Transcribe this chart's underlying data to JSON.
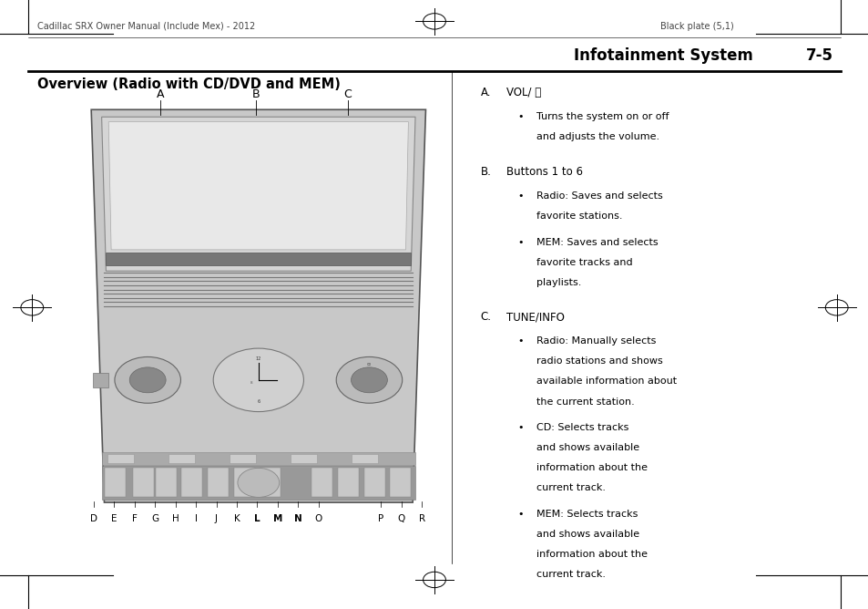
{
  "bg_color": "#ffffff",
  "page_width": 9.54,
  "page_height": 6.68,
  "header_left": "Cadillac SRX Owner Manual (Include Mex) - 2012",
  "header_right": "Black plate (5,1)",
  "section_title": "Infotainment System",
  "section_number": "7-5",
  "content_title": "Overview (Radio with CD/DVD and MEM)",
  "items": [
    {
      "label": "A.",
      "title": "VOL/ ⏻",
      "bullets": [
        "Turns the system on or off\nand adjusts the volume."
      ]
    },
    {
      "label": "B.",
      "title": "Buttons 1 to 6",
      "bullets": [
        "Radio: Saves and selects\nfavorite stations.",
        "MEM: Saves and selects\nfavorite tracks and\nplaylists."
      ]
    },
    {
      "label": "C.",
      "title": "TUNE/INFO",
      "bullets": [
        "Radio: Manually selects\nradio stations and shows\navailable information about\nthe current station.",
        "CD: Selects tracks\nand shows available\ninformation about the\ncurrent track.",
        "MEM: Selects tracks\nand shows available\ninformation about the\ncurrent track."
      ]
    }
  ],
  "bottom_labels": [
    "D",
    "E",
    "F",
    "G",
    "H",
    "I",
    "J",
    "K",
    "L",
    "M",
    "N",
    "O",
    "",
    "P",
    "Q",
    "R"
  ]
}
